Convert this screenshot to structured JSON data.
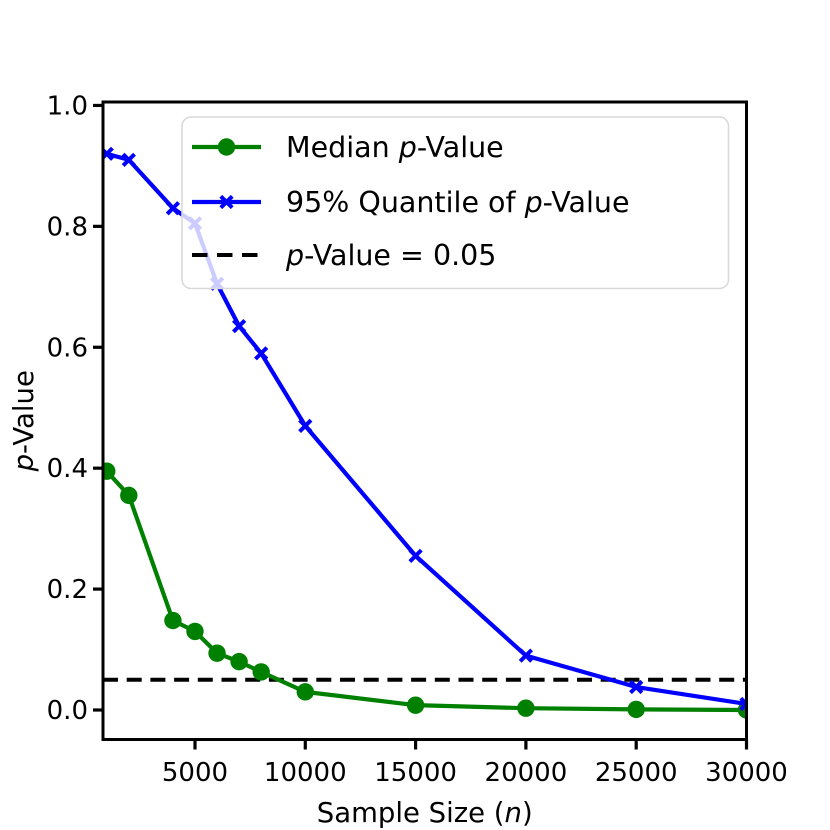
{
  "chart_data": {
    "type": "line",
    "title": "",
    "xlabel": {
      "pre": "Sample Size (",
      "italic": "n",
      "post": ")"
    },
    "ylabel": {
      "pre": "",
      "italic": "p",
      "post": "-Value"
    },
    "x": [
      1000,
      2000,
      4000,
      5000,
      6000,
      7000,
      8000,
      10000,
      15000,
      20000,
      25000,
      30000
    ],
    "series": [
      {
        "name": "Median p-Value",
        "color": "#008000",
        "marker": "circle",
        "values": [
          0.395,
          0.355,
          0.148,
          0.13,
          0.094,
          0.08,
          0.063,
          0.03,
          0.008,
          0.003,
          0.001,
          0.0
        ]
      },
      {
        "name": "95% Quantile of p-Value",
        "color": "#0000ff",
        "marker": "x",
        "values": [
          0.92,
          0.91,
          0.83,
          0.805,
          0.705,
          0.635,
          0.59,
          0.47,
          0.255,
          0.09,
          0.038,
          0.01
        ]
      }
    ],
    "reference_line": {
      "name": "p-Value = 0.05",
      "value": 0.05,
      "color": "#000000",
      "style": "dashed"
    },
    "x_ticks": {
      "values": [
        5000,
        10000,
        15000,
        20000,
        25000,
        30000
      ],
      "labels": [
        "5000",
        "10000",
        "15000",
        "20000",
        "25000",
        "30000"
      ]
    },
    "y_ticks": {
      "values": [
        0.0,
        0.2,
        0.4,
        0.6,
        0.8,
        1.0
      ],
      "labels": [
        "0.0",
        "0.2",
        "0.4",
        "0.6",
        "0.8",
        "1.0"
      ]
    },
    "xlim": [
      830,
      30000
    ],
    "ylim": [
      -0.0488,
      1.0057
    ],
    "grid": false,
    "legend": {
      "position": "upper center",
      "items": [
        {
          "pre": "Median ",
          "italic": "p",
          "post": "-Value"
        },
        {
          "pre": "95% Quantile of ",
          "italic": "p",
          "post": "-Value"
        },
        {
          "pre": "",
          "italic": "p",
          "post": "-Value = 0.05"
        }
      ]
    }
  },
  "colors": {
    "median_series": "#008000",
    "quantile_series": "#0000ff",
    "reference_line": "#000000",
    "legend_border": "#d9d9d9",
    "axes": "#000000",
    "background": "#ffffff"
  }
}
